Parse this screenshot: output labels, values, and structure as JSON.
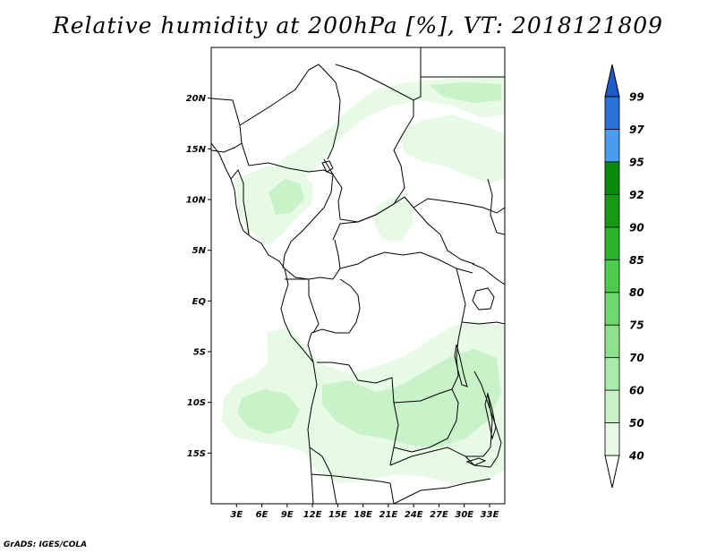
{
  "title": "Relative humidity at 200hPa [%], VT: 2018121809",
  "credit": "GrADS: IGES/COLA",
  "map": {
    "lon_range": [
      0,
      34.8
    ],
    "lat_range": [
      -20,
      25
    ],
    "lat_ticks": [
      {
        "value": 20,
        "label": "20N"
      },
      {
        "value": 15,
        "label": "15N"
      },
      {
        "value": 10,
        "label": "10N"
      },
      {
        "value": 5,
        "label": "5N"
      },
      {
        "value": 0,
        "label": "EQ"
      },
      {
        "value": -5,
        "label": "5S"
      },
      {
        "value": -10,
        "label": "10S"
      },
      {
        "value": -15,
        "label": "15S"
      }
    ],
    "lon_ticks": [
      {
        "value": 3,
        "label": "3E"
      },
      {
        "value": 6,
        "label": "6E"
      },
      {
        "value": 9,
        "label": "9E"
      },
      {
        "value": 12,
        "label": "12E"
      },
      {
        "value": 15,
        "label": "15E"
      },
      {
        "value": 18,
        "label": "18E"
      },
      {
        "value": 21,
        "label": "21E"
      },
      {
        "value": 24,
        "label": "24E"
      },
      {
        "value": 27,
        "label": "27E"
      },
      {
        "value": 30,
        "label": "30E"
      },
      {
        "value": 33,
        "label": "33E"
      }
    ]
  },
  "colorbar": {
    "levels": [
      {
        "label": "40",
        "color": "#ffffff"
      },
      {
        "label": "50",
        "color": "#e6fae6"
      },
      {
        "label": "60",
        "color": "#c8f2c8"
      },
      {
        "label": "70",
        "color": "#aaeaaa"
      },
      {
        "label": "75",
        "color": "#8ee28e"
      },
      {
        "label": "80",
        "color": "#6ed86e"
      },
      {
        "label": "85",
        "color": "#4ccb4c"
      },
      {
        "label": "90",
        "color": "#2db42d"
      },
      {
        "label": "92",
        "color": "#149a14"
      },
      {
        "label": "95",
        "color": "#0a8a0a"
      },
      {
        "label": "97",
        "color": "#4a9cf0"
      },
      {
        "label": "99",
        "color": "#2a72d8"
      }
    ],
    "top_color": "#1e5bc8"
  }
}
